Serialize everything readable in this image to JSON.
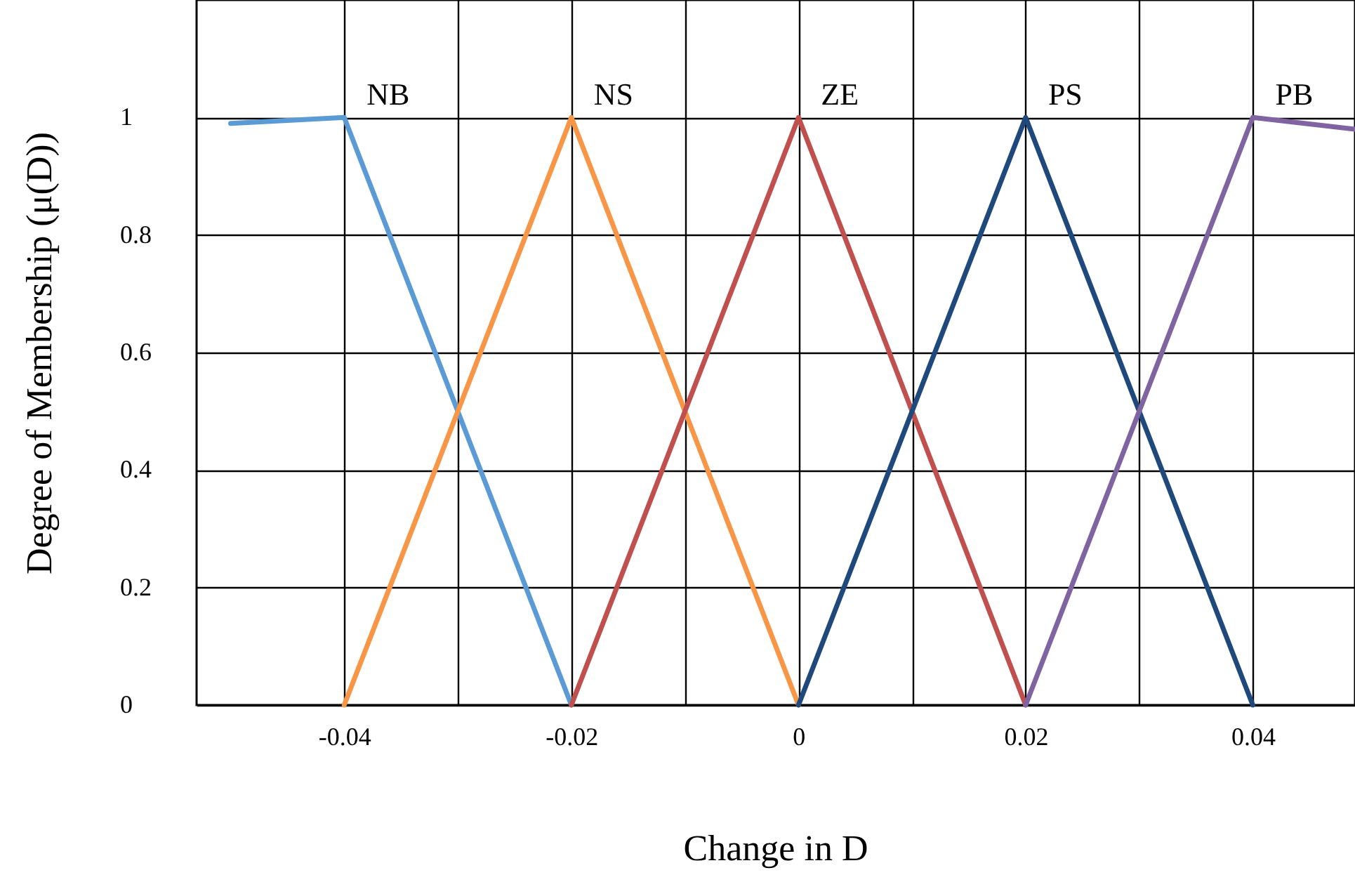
{
  "chart_data": {
    "type": "line",
    "xlabel": "Change in D",
    "ylabel": "Degree of  Membership (μ(D))",
    "xlim": [
      -0.053,
      0.049
    ],
    "ylim": [
      0,
      1.2
    ],
    "xticks": [
      -0.04,
      {
        "value": -0.03,
        "label": null
      },
      -0.02,
      {
        "value": -0.01,
        "label": null
      },
      0,
      {
        "value": 0.01,
        "label": null
      },
      0.02,
      {
        "value": 0.03,
        "label": null
      },
      0.04
    ],
    "yticks": [
      0,
      0.2,
      0.4,
      0.6,
      0.8,
      1
    ],
    "grid": true,
    "series": [
      {
        "name": "NB",
        "color": "#5b9bd5",
        "x": [
          -0.05,
          -0.04,
          -0.02
        ],
        "values": [
          0.99,
          1,
          0
        ]
      },
      {
        "name": "NS",
        "color": "#f79646",
        "x": [
          -0.04,
          -0.02,
          0
        ],
        "values": [
          0,
          1,
          0
        ]
      },
      {
        "name": "ZE",
        "color": "#c0504d",
        "x": [
          -0.02,
          0,
          0.02
        ],
        "values": [
          0,
          1,
          0
        ]
      },
      {
        "name": "PS",
        "color": "#1f497d",
        "x": [
          0,
          0.02,
          0.04
        ],
        "values": [
          0,
          1,
          0
        ]
      },
      {
        "name": "PB",
        "color": "#8064a2",
        "x": [
          0.02,
          0.04,
          0.049
        ],
        "values": [
          0,
          1,
          0.98
        ]
      }
    ]
  }
}
